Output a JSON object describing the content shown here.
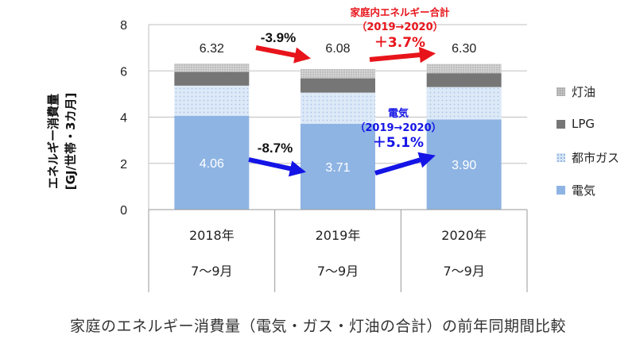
{
  "chart_data": {
    "type": "bar",
    "stacked": true,
    "categories": [
      "2018年",
      "2019年",
      "2020年"
    ],
    "category_sublabels": [
      "7～9月",
      "7～9月",
      "7～9月"
    ],
    "series": [
      {
        "name": "電気",
        "values": [
          4.06,
          3.71,
          3.9
        ],
        "color": "#8eb4e3"
      },
      {
        "name": "都市ガス",
        "values": [
          1.3,
          1.35,
          1.4
        ],
        "color": "#d6e5f6"
      },
      {
        "name": "LPG",
        "values": [
          0.6,
          0.62,
          0.6
        ],
        "color": "#767676"
      },
      {
        "name": "灯油",
        "values": [
          0.36,
          0.4,
          0.4
        ],
        "color": "#cfcfcf"
      }
    ],
    "totals": [
      6.32,
      6.08,
      6.3
    ],
    "total_labels": [
      "6.32",
      "6.08",
      "6.30"
    ],
    "electricity_labels": [
      "4.06",
      "3.71",
      "3.90"
    ],
    "ylabel_lines": [
      "エネルギー消費量",
      "[GJ/世帯・3カ月]"
    ],
    "yticks": [
      0,
      2,
      4,
      6,
      8
    ],
    "ylim": [
      0,
      8
    ],
    "legend_position": "right",
    "legend_order": [
      "灯油",
      "LPG",
      "都市ガス",
      "電気"
    ],
    "annotations": {
      "total_change_1": "-3.9%",
      "total_change_2_title": "家庭内エネルギー合計",
      "total_change_2_period": "（2019→2020）",
      "total_change_2_value": "＋3.7%",
      "elec_change_1": "-8.7%",
      "elec_change_2_title": "電気",
      "elec_change_2_period": "（2019→2020）",
      "elec_change_2_value": "＋5.1%"
    },
    "colors": {
      "red_arrow": "#e8141b",
      "blue_arrow": "#1414e6",
      "total_text": "#e8141b",
      "elec_text": "#1414e6"
    }
  },
  "caption": "家庭のエネルギー消費量（電気・ガス・灯油の合計）の前年同期間比較"
}
